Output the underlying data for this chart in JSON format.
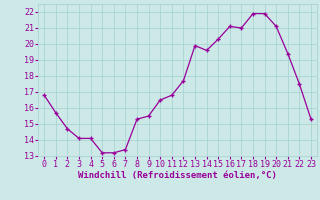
{
  "x": [
    0,
    1,
    2,
    3,
    4,
    5,
    6,
    7,
    8,
    9,
    10,
    11,
    12,
    13,
    14,
    15,
    16,
    17,
    18,
    19,
    20,
    21,
    22,
    23
  ],
  "y": [
    16.8,
    15.7,
    14.7,
    14.1,
    14.1,
    13.2,
    13.2,
    13.4,
    15.3,
    15.5,
    16.5,
    16.8,
    17.7,
    19.9,
    19.6,
    20.3,
    21.1,
    21.0,
    21.9,
    21.9,
    21.1,
    19.4,
    17.5,
    15.3
  ],
  "line_color": "#990099",
  "marker": "+",
  "marker_size": 3.5,
  "linewidth": 0.9,
  "xlabel": "Windchill (Refroidissement éolien,°C)",
  "xlim": [
    -0.5,
    23.5
  ],
  "ylim": [
    13,
    22.5
  ],
  "yticks": [
    13,
    14,
    15,
    16,
    17,
    18,
    19,
    20,
    21,
    22
  ],
  "xticks": [
    0,
    1,
    2,
    3,
    4,
    5,
    6,
    7,
    8,
    9,
    10,
    11,
    12,
    13,
    14,
    15,
    16,
    17,
    18,
    19,
    20,
    21,
    22,
    23
  ],
  "background_color": "#cce9e8",
  "grid_color": "#aad4d3",
  "line_tick_color": "#990099",
  "xlabel_fontsize": 6.5,
  "tick_fontsize": 6.0
}
